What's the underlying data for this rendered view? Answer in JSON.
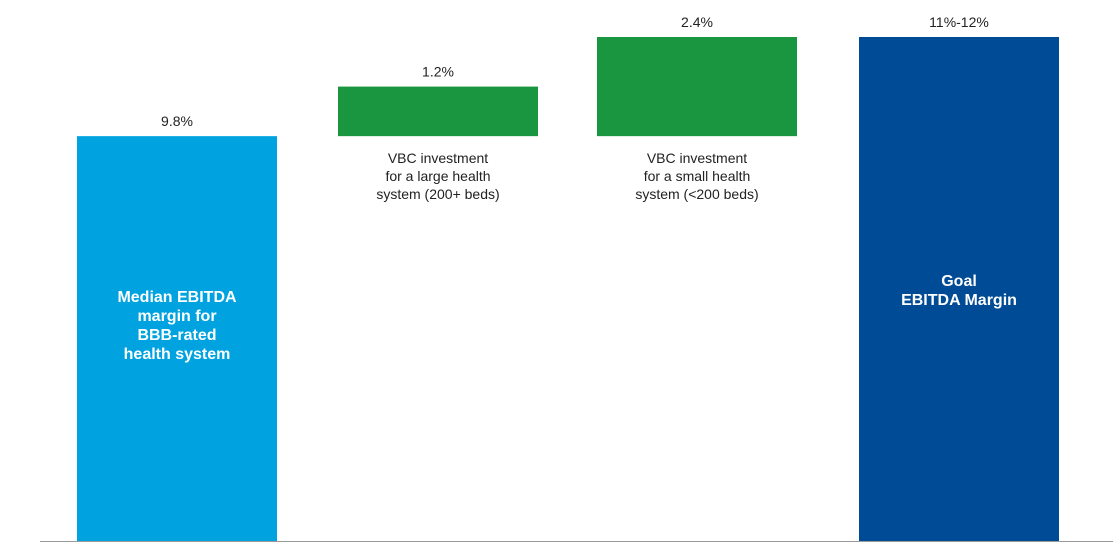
{
  "chart_data": {
    "type": "bar",
    "subtype": "waterfall",
    "categories": [
      "Median EBITDA margin for BBB-rated health system",
      "VBC investment for a large health system (200+ beds)",
      "VBC investment for a small health system (<200 beds)",
      "Goal EBITDA Margin"
    ],
    "bars": [
      {
        "kind": "total",
        "value": 9.8,
        "value_label": "9.8%",
        "label_lines": [
          "Median EBITDA",
          "margin for",
          "BBB-rated",
          "health system"
        ],
        "label_position": "inside",
        "color": "#00a3e0"
      },
      {
        "kind": "increment",
        "base": 9.8,
        "value": 1.2,
        "value_label": "1.2%",
        "label_lines": [
          "VBC investment",
          "for a large health",
          "system (200+ beds)"
        ],
        "label_position": "below",
        "color": "#1a9640"
      },
      {
        "kind": "increment",
        "base": 9.8,
        "value": 2.4,
        "value_label": "2.4%",
        "label_lines": [
          "VBC investment",
          "for a small health",
          "system (<200 beds)"
        ],
        "label_position": "below",
        "color": "#1a9640"
      },
      {
        "kind": "total",
        "value": 12.2,
        "value_label": "11%-12%",
        "label_lines": [
          "Goal",
          "EBITDA Margin"
        ],
        "label_position": "inside-top",
        "color": "#004b96"
      }
    ],
    "ylim": [
      0,
      12.2
    ],
    "grid": false,
    "legend": "none"
  }
}
